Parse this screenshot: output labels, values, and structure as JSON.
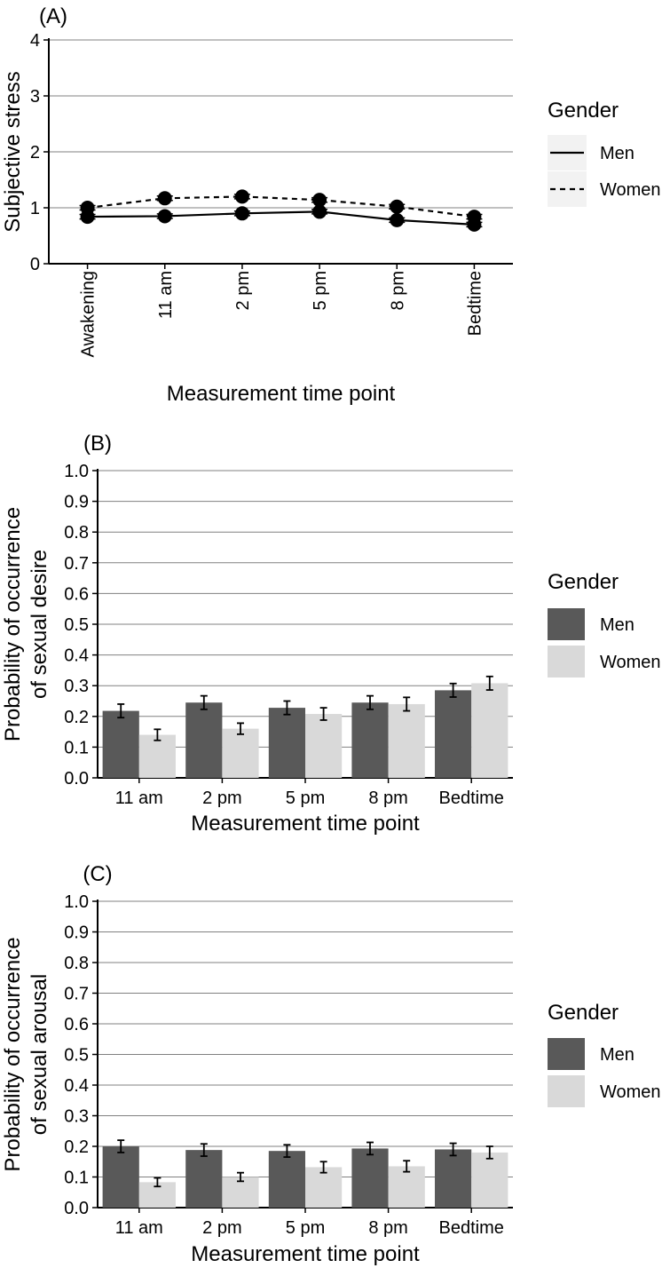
{
  "chart_data": [
    {
      "id": "A",
      "type": "line",
      "panel_label": "(A)",
      "title": "",
      "xlabel": "Measurement time point",
      "ylabel": "Subjective stress",
      "categories": [
        "Awakening",
        "11 am",
        "2 pm",
        "5 pm",
        "8 pm",
        "Bedtime"
      ],
      "ylim": [
        0,
        4
      ],
      "yticks": [
        "0",
        "1",
        "2",
        "3",
        "4"
      ],
      "grid": true,
      "series": [
        {
          "name": "Men",
          "line": "solid",
          "values": [
            0.84,
            0.85,
            0.9,
            0.93,
            0.78,
            0.7
          ],
          "errors": [
            0.04,
            0.04,
            0.04,
            0.04,
            0.04,
            0.04
          ]
        },
        {
          "name": "Women",
          "line": "dashed",
          "values": [
            1.0,
            1.17,
            1.2,
            1.14,
            1.02,
            0.84
          ],
          "errors": [
            0.04,
            0.04,
            0.04,
            0.04,
            0.04,
            0.04
          ]
        }
      ],
      "legend": {
        "title": "Gender",
        "items": [
          "Men",
          "Women"
        ],
        "placement": "right"
      }
    },
    {
      "id": "B",
      "type": "bar",
      "panel_label": "(B)",
      "title": "",
      "xlabel": "Measurement time point",
      "ylabel": "Probability of occurrence\nof sexual desire",
      "ylabel_lines": [
        "Probability of occurrence",
        "of sexual desire"
      ],
      "categories": [
        "11 am",
        "2 pm",
        "5 pm",
        "8 pm",
        "Bedtime"
      ],
      "ylim": [
        0,
        1
      ],
      "yticks": [
        "0.0",
        "0.1",
        "0.2",
        "0.3",
        "0.4",
        "0.5",
        "0.6",
        "0.7",
        "0.8",
        "0.9",
        "1.0"
      ],
      "grid": true,
      "series": [
        {
          "name": "Men",
          "color": "#595959",
          "values": [
            0.218,
            0.245,
            0.228,
            0.245,
            0.285
          ],
          "errors": [
            0.022,
            0.022,
            0.022,
            0.022,
            0.022
          ]
        },
        {
          "name": "Women",
          "color": "#d9d9d9",
          "values": [
            0.14,
            0.16,
            0.208,
            0.24,
            0.308
          ],
          "errors": [
            0.018,
            0.018,
            0.02,
            0.022,
            0.022
          ]
        }
      ],
      "legend": {
        "title": "Gender",
        "items": [
          "Men",
          "Women"
        ],
        "placement": "right"
      }
    },
    {
      "id": "C",
      "type": "bar",
      "panel_label": "(C)",
      "title": "",
      "xlabel": "Measurement time point",
      "ylabel": "Probability of occurrence\nof sexual arousal",
      "ylabel_lines": [
        "Probability of occurrence",
        "of sexual arousal"
      ],
      "categories": [
        "11 am",
        "2 pm",
        "5 pm",
        "8 pm",
        "Bedtime"
      ],
      "ylim": [
        0,
        1
      ],
      "yticks": [
        "0.0",
        "0.1",
        "0.2",
        "0.3",
        "0.4",
        "0.5",
        "0.6",
        "0.7",
        "0.8",
        "0.9",
        "1.0"
      ],
      "grid": true,
      "series": [
        {
          "name": "Men",
          "color": "#595959",
          "values": [
            0.2,
            0.188,
            0.185,
            0.193,
            0.19
          ],
          "errors": [
            0.02,
            0.02,
            0.02,
            0.02,
            0.02
          ]
        },
        {
          "name": "Women",
          "color": "#d9d9d9",
          "values": [
            0.083,
            0.1,
            0.132,
            0.135,
            0.18
          ],
          "errors": [
            0.014,
            0.014,
            0.018,
            0.018,
            0.02
          ]
        }
      ],
      "legend": {
        "title": "Gender",
        "items": [
          "Men",
          "Women"
        ],
        "placement": "right"
      }
    }
  ]
}
